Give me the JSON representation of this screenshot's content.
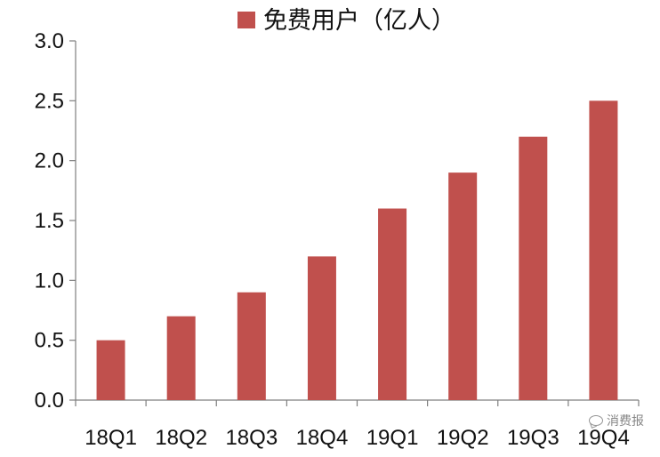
{
  "chart_data": {
    "type": "bar",
    "categories": [
      "18Q1",
      "18Q2",
      "18Q3",
      "18Q4",
      "19Q1",
      "19Q2",
      "19Q3",
      "19Q4"
    ],
    "series": [
      {
        "name": "免费用户（亿人）",
        "values": [
          0.5,
          0.7,
          0.9,
          1.2,
          1.6,
          1.9,
          2.2,
          2.5
        ],
        "color": "#C0504D"
      }
    ],
    "ylim": [
      0,
      3.0
    ],
    "yticks": [
      "0.0",
      "0.5",
      "1.0",
      "1.5",
      "2.0",
      "2.5",
      "3.0"
    ],
    "grid": false,
    "legend_position": "top-center"
  },
  "watermark": {
    "text": "消费报",
    "icon": "wechat-icon"
  }
}
